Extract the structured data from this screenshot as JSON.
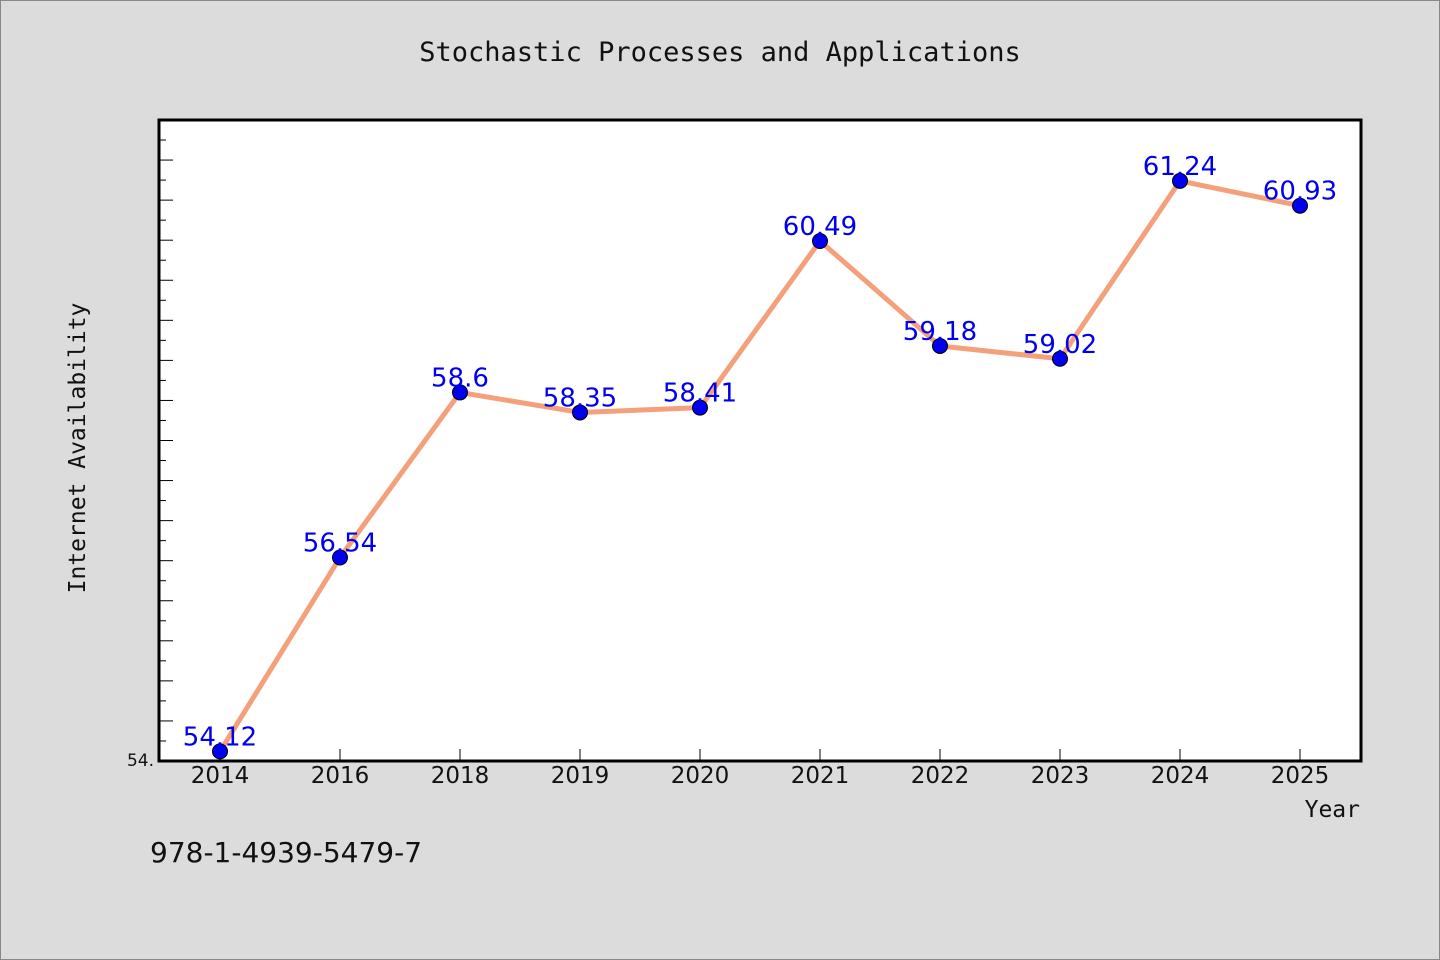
{
  "chart_data": {
    "type": "line",
    "title": "Stochastic Processes and Applications",
    "xlabel": "Year",
    "ylabel": "Internet Availability",
    "categories": [
      "2014",
      "2016",
      "2018",
      "2019",
      "2020",
      "2021",
      "2022",
      "2023",
      "2024",
      "2025"
    ],
    "series": [
      {
        "values": [
          54.12,
          56.54,
          58.6,
          58.35,
          58.41,
          60.49,
          59.18,
          59.02,
          61.24,
          60.93
        ],
        "labels": [
          "54.12",
          "56.54",
          "58.6",
          "58.35",
          "58.41",
          "60.49",
          "59.18",
          "59.02",
          "61.24",
          "60.93"
        ]
      }
    ],
    "ylim": [
      54.0,
      62.0
    ],
    "y_tick_labels": [
      "54."
    ],
    "grid": false,
    "line_color": "#f4a07a",
    "marker_color": "#0000ee"
  },
  "footer": {
    "isbn": "978-1-4939-5479-7"
  }
}
